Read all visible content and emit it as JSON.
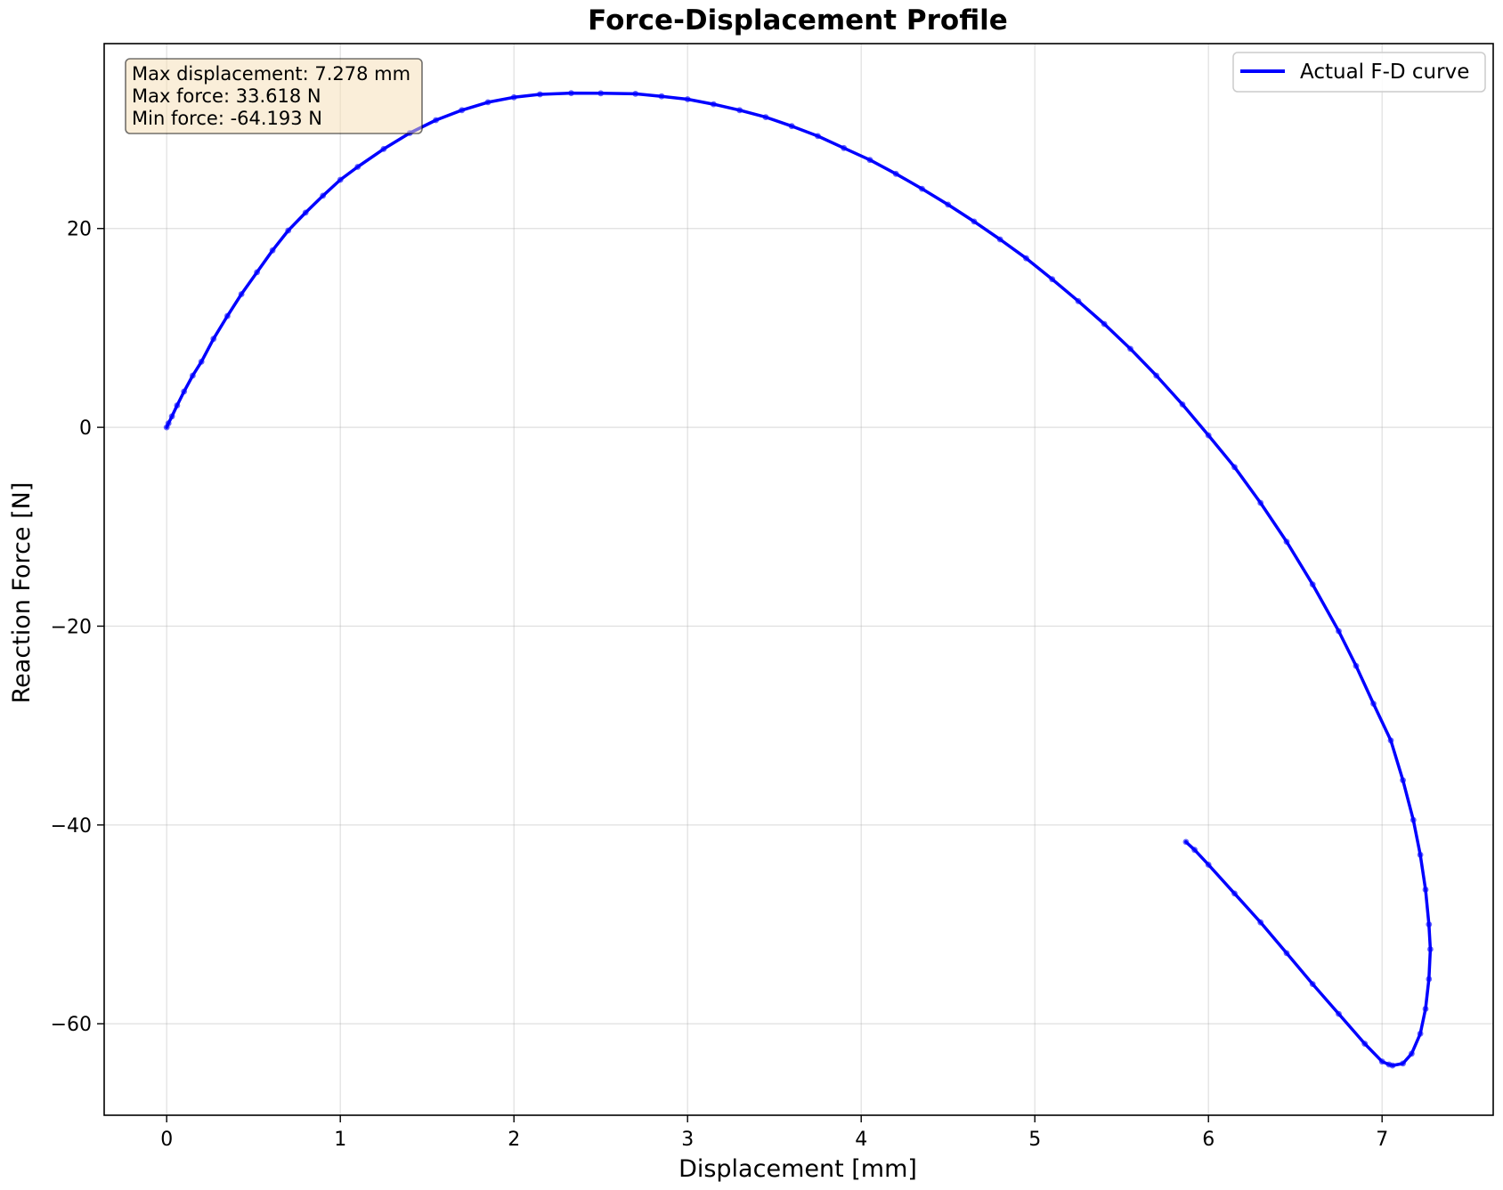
{
  "chart_data": {
    "type": "line",
    "title": "Force-Displacement Profile",
    "xlabel": "Displacement [mm]",
    "ylabel": "Reaction Force [N]",
    "xlim": [
      -0.36,
      7.64
    ],
    "ylim": [
      -69.2,
      38.6
    ],
    "xticks": [
      0,
      1,
      2,
      3,
      4,
      5,
      6,
      7
    ],
    "yticks": [
      -60,
      -40,
      -20,
      0,
      20
    ],
    "grid": true,
    "legend": {
      "position": "top-right",
      "entries": [
        "Actual F-D curve"
      ]
    },
    "annotation": {
      "lines": [
        "Max displacement: 7.278 mm",
        "Max force: 33.618 N",
        "Min force: -64.193 N"
      ],
      "position": "top-left"
    },
    "series": [
      {
        "name": "Actual F-D curve",
        "color": "#0000ff",
        "x": [
          0.0,
          0.01,
          0.03,
          0.06,
          0.1,
          0.15,
          0.2,
          0.27,
          0.35,
          0.43,
          0.52,
          0.61,
          0.7,
          0.8,
          0.9,
          1.0,
          1.1,
          1.25,
          1.4,
          1.55,
          1.7,
          1.85,
          2.0,
          2.15,
          2.33,
          2.5,
          2.7,
          2.85,
          3.0,
          3.15,
          3.3,
          3.45,
          3.6,
          3.75,
          3.9,
          4.05,
          4.2,
          4.35,
          4.5,
          4.65,
          4.8,
          4.95,
          5.1,
          5.25,
          5.4,
          5.55,
          5.7,
          5.85,
          6.0,
          6.15,
          6.3,
          6.45,
          6.6,
          6.75,
          6.85,
          6.95,
          7.05,
          7.12,
          7.18,
          7.22,
          7.25,
          7.27,
          7.278,
          7.27,
          7.25,
          7.22,
          7.17,
          7.12,
          7.06,
          7.04,
          7.0,
          6.9,
          6.75,
          6.6,
          6.45,
          6.3,
          6.15,
          6.0,
          5.92,
          5.87
        ],
        "y": [
          0.0,
          0.4,
          1.1,
          2.2,
          3.6,
          5.2,
          6.6,
          8.9,
          11.2,
          13.4,
          15.6,
          17.8,
          19.8,
          21.6,
          23.3,
          24.9,
          26.2,
          28.0,
          29.6,
          30.9,
          31.9,
          32.7,
          33.2,
          33.5,
          33.618,
          33.6,
          33.55,
          33.3,
          33.0,
          32.5,
          31.9,
          31.2,
          30.3,
          29.3,
          28.1,
          26.9,
          25.5,
          24.0,
          22.4,
          20.7,
          18.9,
          17.0,
          14.9,
          12.7,
          10.4,
          7.9,
          5.2,
          2.3,
          -0.8,
          -4.0,
          -7.6,
          -11.5,
          -15.8,
          -20.5,
          -24.0,
          -27.8,
          -31.5,
          -35.5,
          -39.5,
          -43.0,
          -46.5,
          -50.0,
          -52.5,
          -55.5,
          -58.5,
          -61.0,
          -63.0,
          -64.0,
          -64.193,
          -64.1,
          -63.8,
          -62.0,
          -59.0,
          -56.0,
          -52.9,
          -49.8,
          -46.9,
          -44.0,
          -42.5,
          -41.7
        ]
      }
    ]
  }
}
